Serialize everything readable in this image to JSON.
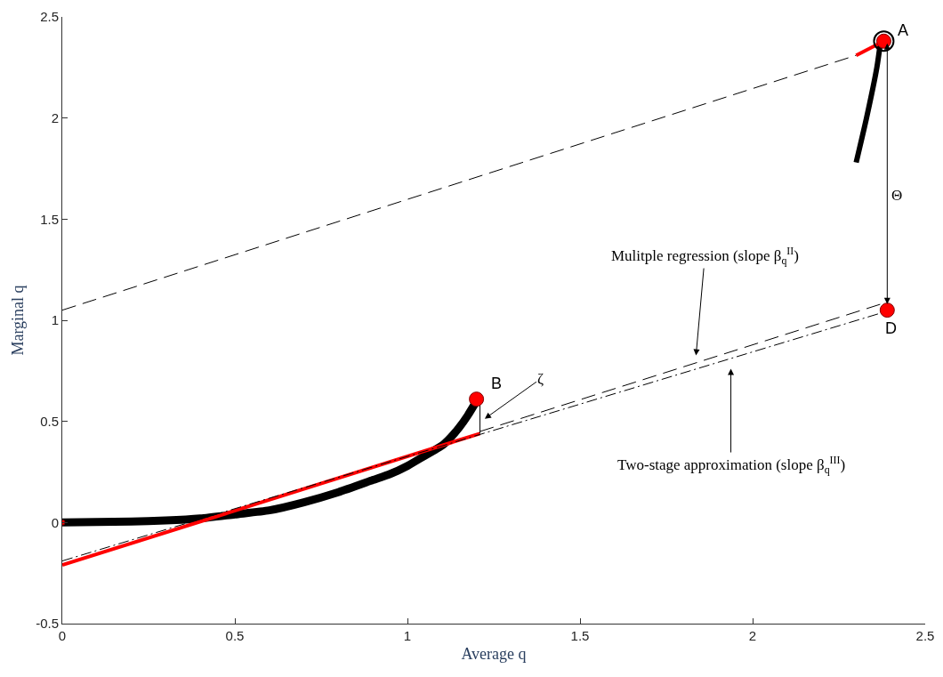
{
  "chart_data": {
    "type": "line",
    "xlabel": "Average q",
    "ylabel": "Marginal q",
    "xlim": [
      0,
      2.5
    ],
    "ylim": [
      -0.5,
      2.5
    ],
    "xticks": [
      0,
      0.5,
      1,
      1.5,
      2,
      2.5
    ],
    "yticks": [
      -0.5,
      0,
      0.5,
      1,
      1.5,
      2,
      2.5
    ],
    "series": [
      {
        "color": "#000000",
        "line_style": "solid",
        "x": [
          0,
          0.2,
          0.3,
          0.4,
          0.5,
          0.6,
          0.7,
          0.8,
          0.9,
          0.95,
          1.0,
          1.05,
          1.1,
          1.125,
          1.15,
          1.175,
          1.2
        ],
        "values": [
          0,
          0.005,
          0.01,
          0.02,
          0.04,
          0.06,
          0.1,
          0.15,
          0.21,
          0.24,
          0.28,
          0.33,
          0.38,
          0.42,
          0.47,
          0.53,
          0.6
        ]
      },
      {
        "color": "#000000",
        "line_style": "solid",
        "x": [
          2.3,
          2.33,
          2.36,
          2.37
        ],
        "values": [
          1.78,
          2.0,
          2.25,
          2.37
        ]
      },
      {
        "color": "#ff0000",
        "line_style": "solid",
        "x": [
          0,
          1.21
        ],
        "values": [
          -0.21,
          0.44
        ]
      },
      {
        "color": "#ff0000",
        "line_style": "solid",
        "x": [
          2.3,
          2.38
        ],
        "values": [
          2.31,
          2.38
        ]
      },
      {
        "color": "#000000",
        "line_style": "dashed",
        "x": [
          0,
          2.3
        ],
        "values": [
          1.05,
          2.31
        ]
      },
      {
        "color": "#000000",
        "line_style": "dashed",
        "x": [
          1.21,
          2.39
        ],
        "values": [
          0.45,
          1.09
        ]
      },
      {
        "color": "#000000",
        "line_style": "dashdot",
        "x": [
          0,
          2.38
        ],
        "values": [
          -0.19,
          1.04
        ]
      },
      {
        "color": "#000000",
        "line_style": "solid",
        "x": [
          1.21,
          1.21
        ],
        "values": [
          0.44,
          0.6
        ]
      },
      {
        "type": "scatter",
        "color": "#000000",
        "marker": "circle-open",
        "x": [
          2.38
        ],
        "values": [
          2.38
        ]
      },
      {
        "type": "scatter",
        "color": "#ff0000",
        "marker": "circle",
        "x": [
          2.38,
          1.2,
          2.39
        ],
        "values": [
          2.38,
          0.61,
          1.05
        ]
      },
      {
        "type": "scatter",
        "color": "#ff0000",
        "marker": "circle",
        "x": [
          0
        ],
        "values": [
          0
        ]
      }
    ],
    "annotations": [
      {
        "text": "A",
        "x": 2.38,
        "y": 2.38
      },
      {
        "text": "B",
        "x": 1.2,
        "y": 0.61
      },
      {
        "text": "D",
        "x": 2.39,
        "y": 1.05
      },
      "ζ",
      "Θ",
      "Mulitple regression (slope β$_{q}$$^{II}$)",
      "Two-stage approximation (slope β$_{q}$$^{III}$)"
    ]
  }
}
